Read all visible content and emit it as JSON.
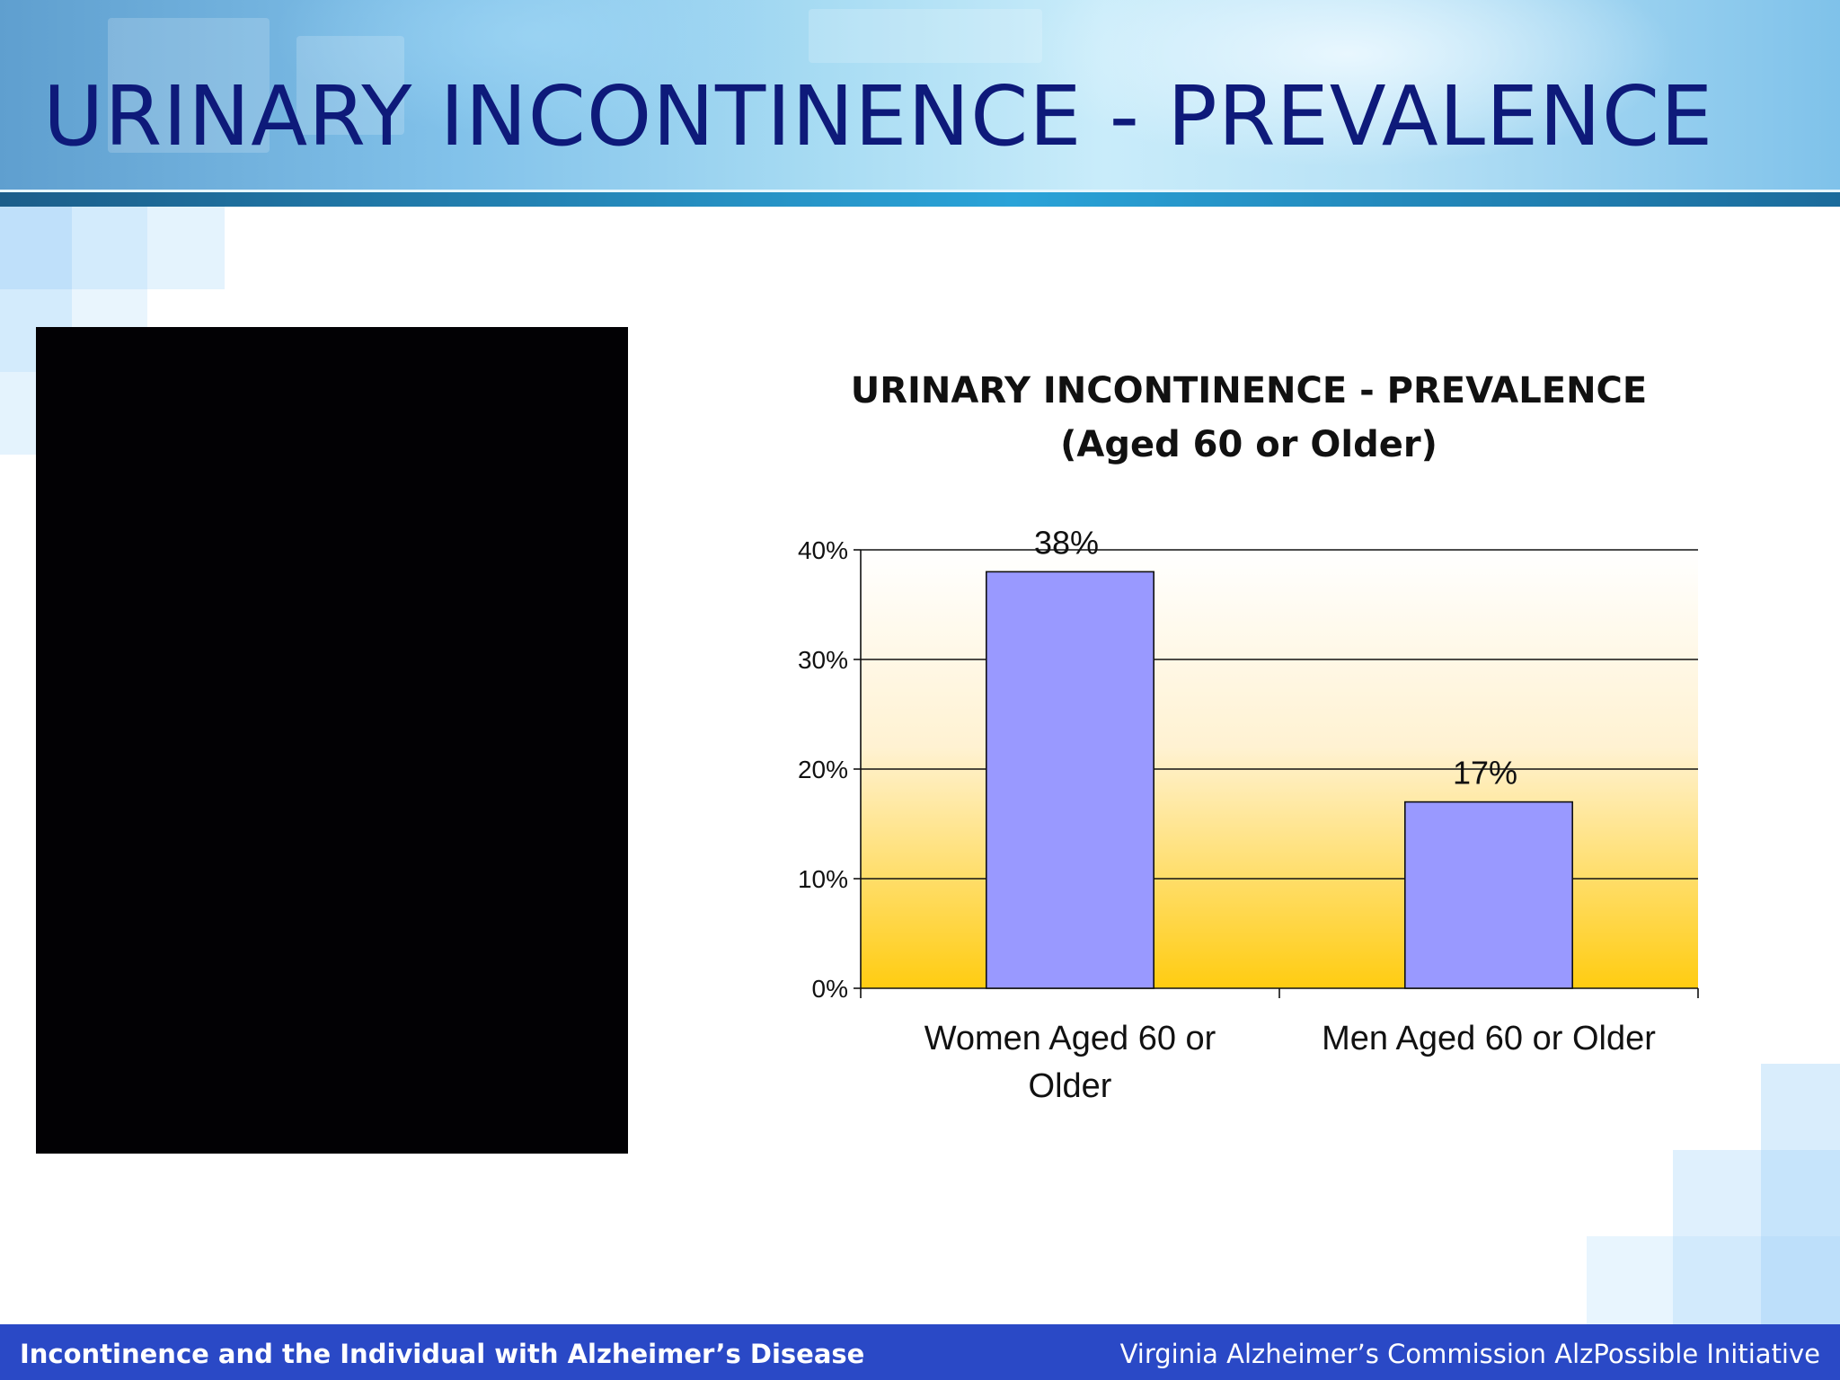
{
  "slide": {
    "title": "URINARY INCONTINENCE - PREVALENCE"
  },
  "footer": {
    "left_text": "Incontinence and the Individual with Alzheimer’s Disease",
    "right_text": "Virginia Alzheimer’s Commission AlzPossible Initiative"
  },
  "colors": {
    "title": "#0e1a7a",
    "footer_bg": "#2a49c6",
    "bar_fill": "#9999ff",
    "plot_gradient_top": "#ffffff",
    "plot_gradient_bottom": "#ffcc11"
  },
  "chart_data": {
    "type": "bar",
    "title": "URINARY INCONTINENCE - PREVALENCE",
    "subtitle": "(Aged 60 or Older)",
    "categories": [
      "Women Aged 60 or Older",
      "Men Aged 60 or Older"
    ],
    "category_label_lines": [
      [
        "Women Aged 60 or",
        "Older"
      ],
      [
        "Men Aged 60 or Older"
      ]
    ],
    "values": [
      38,
      17
    ],
    "data_labels": [
      "38%",
      "17%"
    ],
    "yticks": [
      0,
      10,
      20,
      30,
      40
    ],
    "ytick_labels": [
      "0%",
      "10%",
      "20%",
      "30%",
      "40%"
    ],
    "ylim": [
      0,
      40
    ],
    "grid": true,
    "legend": false,
    "xlabel": "",
    "ylabel": ""
  }
}
